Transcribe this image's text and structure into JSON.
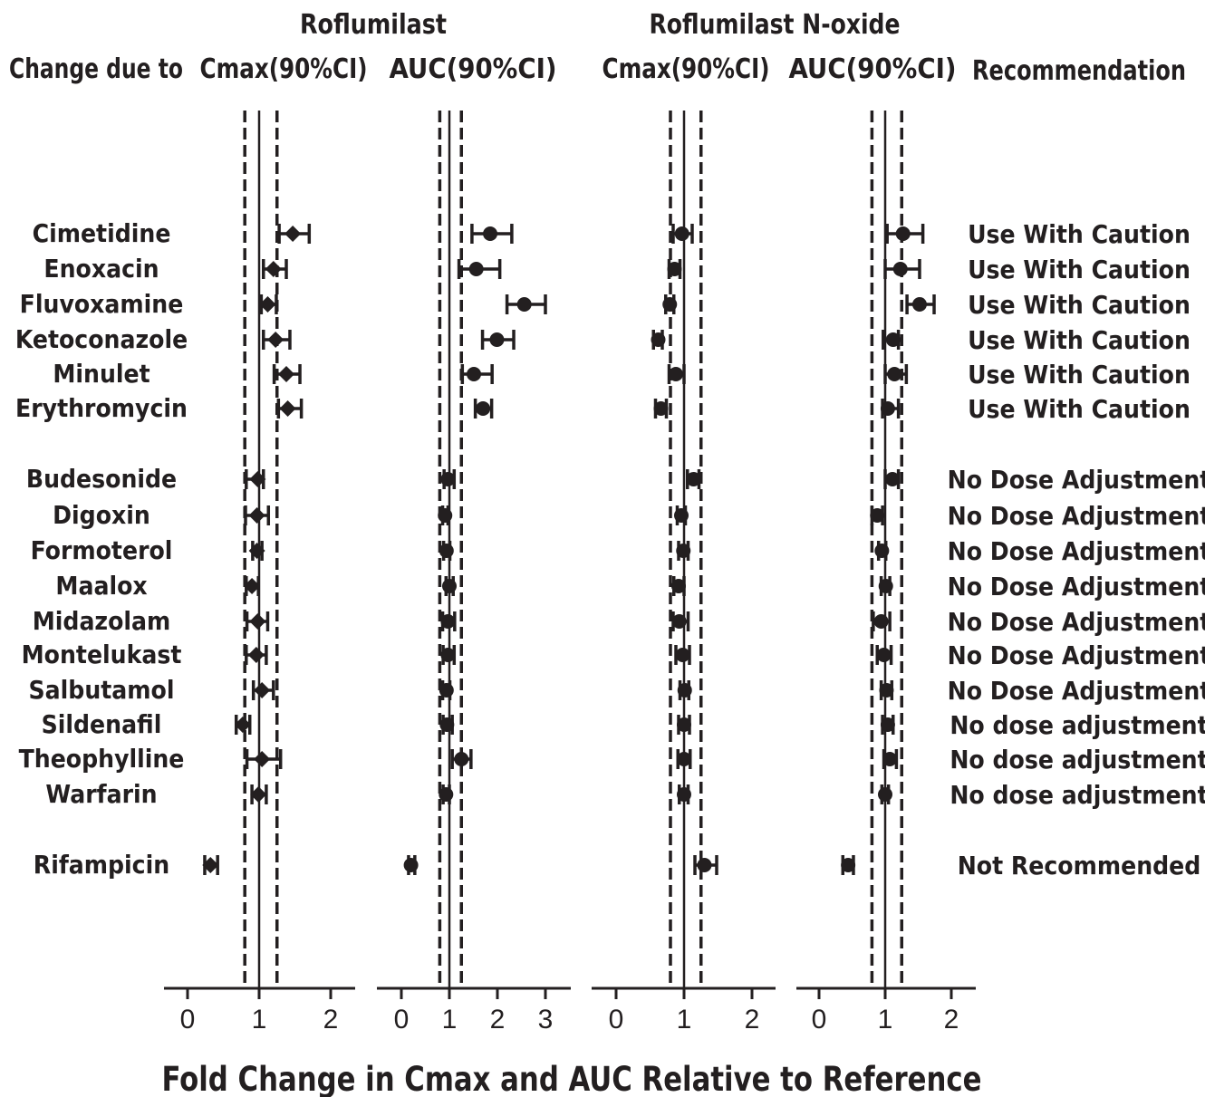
{
  "chart_data": {
    "type": "forest",
    "title": "",
    "xlabel": "Fold Change in Cmax and AUC Relative to Reference",
    "row_header": "Change due to",
    "recommendation_header": "Recommendation",
    "groups": [
      "Roflumilast",
      "Roflumilast N-oxide"
    ],
    "panels": [
      {
        "group": "Roflumilast",
        "label": "Cmax(90%CI)",
        "ticks": [
          0,
          1,
          2
        ],
        "reference": 1,
        "bounds": [
          0.8,
          1.25
        ]
      },
      {
        "group": "Roflumilast",
        "label": "AUC(90%CI)",
        "ticks": [
          0,
          1,
          2,
          3
        ],
        "reference": 1,
        "bounds": [
          0.8,
          1.25
        ]
      },
      {
        "group": "Roflumilast N-oxide",
        "label": "Cmax(90%CI)",
        "ticks": [
          0,
          1,
          2
        ],
        "reference": 1,
        "bounds": [
          0.8,
          1.25
        ]
      },
      {
        "group": "Roflumilast N-oxide",
        "label": "AUC(90%CI)",
        "ticks": [
          0,
          1,
          2
        ],
        "reference": 1,
        "bounds": [
          0.8,
          1.25
        ]
      }
    ],
    "rows": [
      {
        "drug": "Cimetidine",
        "recommendation": "Use With Caution",
        "values": [
          [
            1.47,
            1.28,
            1.7
          ],
          [
            1.85,
            1.47,
            2.3
          ],
          [
            0.97,
            0.84,
            1.12
          ],
          [
            1.27,
            1.03,
            1.57
          ]
        ]
      },
      {
        "drug": "Enoxacin",
        "recommendation": "Use With Caution",
        "values": [
          [
            1.2,
            1.06,
            1.38
          ],
          [
            1.56,
            1.2,
            2.05
          ],
          [
            0.86,
            0.78,
            0.94
          ],
          [
            1.23,
            1.0,
            1.52
          ]
        ]
      },
      {
        "drug": "Fluvoxamine",
        "recommendation": "Use With Caution",
        "values": [
          [
            1.12,
            1.03,
            1.24
          ],
          [
            2.56,
            2.2,
            3.0
          ],
          [
            0.79,
            0.73,
            0.85
          ],
          [
            1.52,
            1.33,
            1.74
          ]
        ]
      },
      {
        "drug": "Ketoconazole",
        "recommendation": "Use With Caution",
        "values": [
          [
            1.23,
            1.06,
            1.43
          ],
          [
            1.99,
            1.69,
            2.34
          ],
          [
            0.62,
            0.55,
            0.68
          ],
          [
            1.12,
            0.97,
            1.2
          ]
        ]
      },
      {
        "drug": "Minulet",
        "recommendation": "Use With Caution",
        "values": [
          [
            1.38,
            1.21,
            1.57
          ],
          [
            1.51,
            1.27,
            1.89
          ],
          [
            0.88,
            0.78,
            1.0
          ],
          [
            1.14,
            1.0,
            1.32
          ]
        ]
      },
      {
        "drug": "Erythromycin",
        "recommendation": "Use With Caution",
        "values": [
          [
            1.4,
            1.27,
            1.59
          ],
          [
            1.7,
            1.54,
            1.88
          ],
          [
            0.66,
            0.58,
            0.74
          ],
          [
            1.04,
            0.96,
            1.2
          ]
        ]
      },
      {
        "drug": "Budesonide",
        "recommendation": "No Dose Adjustment",
        "values": [
          [
            0.98,
            0.82,
            1.06
          ],
          [
            0.97,
            0.89,
            1.1
          ],
          [
            1.14,
            1.05,
            1.22
          ],
          [
            1.11,
            1.0,
            1.2
          ]
        ]
      },
      {
        "drug": "Digoxin",
        "recommendation": "No Dose Adjustment",
        "values": [
          [
            0.97,
            0.81,
            1.13
          ],
          [
            0.91,
            0.86,
            0.97
          ],
          [
            0.96,
            0.9,
            1.02
          ],
          [
            0.88,
            0.8,
            0.96
          ]
        ]
      },
      {
        "drug": "Formoterol",
        "recommendation": "No Dose Adjustment",
        "values": [
          [
            0.97,
            0.91,
            1.04
          ],
          [
            0.94,
            0.88,
            1.01
          ],
          [
            0.99,
            0.92,
            1.06
          ],
          [
            0.95,
            0.9,
            1.01
          ]
        ]
      },
      {
        "drug": "Maalox",
        "recommendation": "No Dose Adjustment",
        "values": [
          [
            0.9,
            0.82,
            0.99
          ],
          [
            1.0,
            0.93,
            1.08
          ],
          [
            0.92,
            0.85,
            1.0
          ],
          [
            1.01,
            0.94,
            1.07
          ]
        ]
      },
      {
        "drug": "Midazolam",
        "recommendation": "No Dose Adjustment",
        "values": [
          [
            0.98,
            0.83,
            1.12
          ],
          [
            0.97,
            0.86,
            1.11
          ],
          [
            0.93,
            0.84,
            1.06
          ],
          [
            0.94,
            0.82,
            1.07
          ]
        ]
      },
      {
        "drug": "Montelukast",
        "recommendation": "No Dose Adjustment",
        "values": [
          [
            0.96,
            0.82,
            1.1
          ],
          [
            0.97,
            0.87,
            1.1
          ],
          [
            0.98,
            0.88,
            1.08
          ],
          [
            0.98,
            0.88,
            1.09
          ]
        ]
      },
      {
        "drug": "Salbutamol",
        "recommendation": "No Dose Adjustment",
        "values": [
          [
            1.04,
            0.92,
            1.2
          ],
          [
            0.94,
            0.86,
            1.01
          ],
          [
            1.01,
            0.94,
            1.07
          ],
          [
            1.02,
            0.94,
            1.1
          ]
        ]
      },
      {
        "drug": "Sildenafil",
        "recommendation": "No dose adjustment",
        "values": [
          [
            0.77,
            0.68,
            0.87
          ],
          [
            0.95,
            0.87,
            1.06
          ],
          [
            1.0,
            0.92,
            1.08
          ],
          [
            1.04,
            0.96,
            1.12
          ]
        ]
      },
      {
        "drug": "Theophylline",
        "recommendation": "No dose adjustment",
        "values": [
          [
            1.04,
            0.83,
            1.3
          ],
          [
            1.25,
            1.06,
            1.45
          ],
          [
            1.0,
            0.91,
            1.09
          ],
          [
            1.07,
            0.98,
            1.17
          ]
        ]
      },
      {
        "drug": "Warfarin",
        "recommendation": "No dose adjustment",
        "values": [
          [
            0.99,
            0.9,
            1.1
          ],
          [
            0.93,
            0.87,
            1.0
          ],
          [
            1.0,
            0.93,
            1.06
          ],
          [
            1.0,
            0.95,
            1.05
          ]
        ]
      },
      {
        "drug": "Rifampicin",
        "recommendation": "Not Recommended",
        "values": [
          [
            0.32,
            0.24,
            0.42
          ],
          [
            0.2,
            0.15,
            0.28
          ],
          [
            1.3,
            1.16,
            1.48
          ],
          [
            0.44,
            0.36,
            0.52
          ]
        ]
      }
    ]
  }
}
